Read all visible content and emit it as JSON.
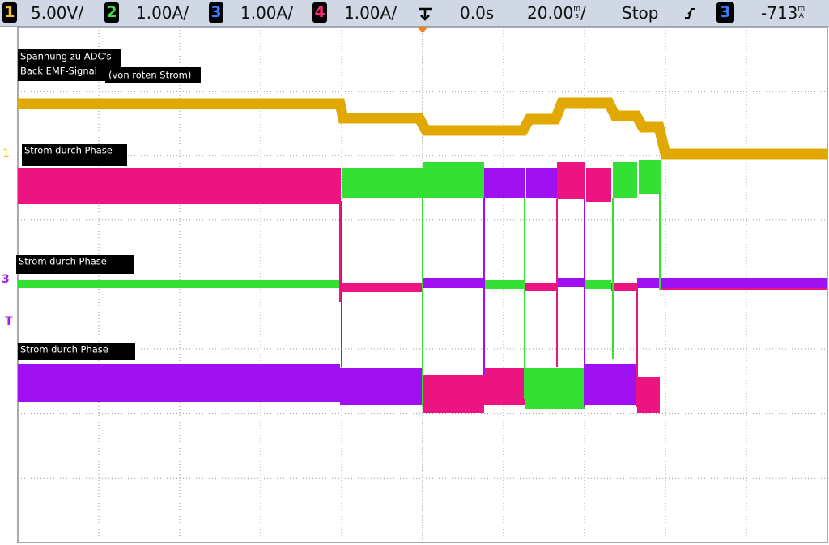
{
  "header": {
    "channels": [
      {
        "number": "1",
        "scale": "5.00V/"
      },
      {
        "number": "2",
        "scale": "1.00A/"
      },
      {
        "number": "3",
        "scale": "1.00A/"
      },
      {
        "number": "4",
        "scale": "1.00A/"
      }
    ],
    "time_offset": "0.0s",
    "timebase": {
      "value": "20.00",
      "unit_top": "m",
      "unit_bottom": "s",
      "suffix": "/"
    },
    "status": "Stop",
    "trigger": {
      "channel": "3",
      "level": "-713",
      "unit_top": "m",
      "unit_bottom": "A"
    }
  },
  "markers": {
    "ch1": "1",
    "ch3": "3",
    "trigger": "T"
  },
  "annotations": {
    "adc_line1": "Spannung zu ADC's",
    "adc_line2": "Back EMF-Signal",
    "adc_note": "(von roten Strom)",
    "phase_top": "Strom durch Phase",
    "phase_middle": "Strom durch Phase",
    "phase_bottom": "Strom durch Phase"
  }
}
